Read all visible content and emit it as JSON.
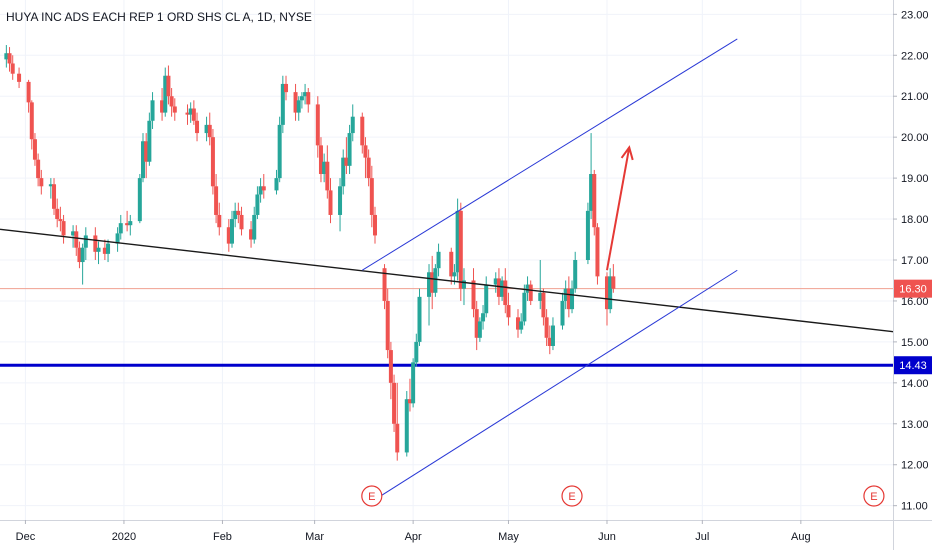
{
  "chart_data": {
    "type": "candlestick",
    "title": "HUYA INC ADS EACH REP 1 ORD SHS CL A, 1D, NYSE",
    "y_ticks": [
      "23.00",
      "22.00",
      "21.00",
      "20.00",
      "19.00",
      "18.00",
      "17.00",
      "16.00",
      "15.00",
      "14.00",
      "13.00",
      "12.00",
      "11.00"
    ],
    "y_tick_values": [
      23,
      22,
      21,
      20,
      19,
      18,
      17,
      16,
      15,
      14,
      13,
      12,
      11
    ],
    "ylim": [
      10.65,
      23.35
    ],
    "x_ticks": [
      "Dec",
      "2020",
      "Feb",
      "Mar",
      "Apr",
      "May",
      "Jun",
      "Jul",
      "Aug"
    ],
    "x_tick_dates": [
      "2019-12-01",
      "2020-01-01",
      "2020-02-01",
      "2020-03-01",
      "2020-04-01",
      "2020-05-01",
      "2020-06-01",
      "2020-07-01",
      "2020-08-01"
    ],
    "xlim": [
      "2019-11-23",
      "2020-08-30"
    ],
    "last_price": "16.30",
    "last_price_value": 16.3,
    "support_level": "14.43",
    "support_level_value": 14.43,
    "colors": {
      "up": "#26a69a",
      "down": "#ef5350",
      "channel": "#2a39d6",
      "support": "#0000cc",
      "trendline": "#1a1a1a",
      "arrow": "#e53935",
      "price_line": "#f0a090"
    },
    "candles": [
      [
        "2019-11-25",
        21.9,
        22.25,
        21.7,
        22.05
      ],
      [
        "2019-11-26",
        22.05,
        22.2,
        21.6,
        21.8
      ],
      [
        "2019-11-27",
        21.8,
        22.0,
        21.4,
        21.55
      ],
      [
        "2019-11-29",
        21.55,
        21.7,
        21.2,
        21.35
      ],
      [
        "2019-12-02",
        21.35,
        21.4,
        20.6,
        20.85
      ],
      [
        "2019-12-03",
        20.85,
        20.9,
        19.7,
        19.95
      ],
      [
        "2019-12-04",
        19.95,
        20.1,
        19.3,
        19.45
      ],
      [
        "2019-12-05",
        19.45,
        19.6,
        18.8,
        19.0
      ],
      [
        "2019-12-06",
        19.0,
        19.2,
        18.6,
        18.8
      ],
      [
        "2019-12-09",
        18.8,
        19.0,
        18.5,
        18.85
      ],
      [
        "2019-12-10",
        18.85,
        19.0,
        18.1,
        18.25
      ],
      [
        "2019-12-11",
        18.25,
        18.5,
        17.8,
        18.0
      ],
      [
        "2019-12-12",
        18.0,
        18.3,
        17.7,
        17.95
      ],
      [
        "2019-12-13",
        17.95,
        18.1,
        17.4,
        17.6
      ],
      [
        "2019-12-16",
        17.6,
        17.85,
        17.3,
        17.7
      ],
      [
        "2019-12-17",
        17.7,
        17.85,
        17.1,
        17.3
      ],
      [
        "2019-12-18",
        17.3,
        17.45,
        16.8,
        16.95
      ],
      [
        "2019-12-19",
        16.95,
        17.4,
        16.4,
        17.3
      ],
      [
        "2019-12-20",
        17.3,
        17.8,
        17.0,
        17.6
      ],
      [
        "2019-12-23",
        17.6,
        17.8,
        17.0,
        17.2
      ],
      [
        "2019-12-24",
        17.2,
        17.45,
        16.9,
        17.3
      ],
      [
        "2019-12-26",
        17.3,
        17.5,
        17.0,
        17.15
      ],
      [
        "2019-12-27",
        17.15,
        17.5,
        16.95,
        17.4
      ],
      [
        "2019-12-30",
        17.4,
        17.8,
        17.2,
        17.65
      ],
      [
        "2019-12-31",
        17.65,
        18.1,
        17.5,
        17.9
      ],
      [
        "2020-01-02",
        17.9,
        18.2,
        17.7,
        17.85
      ],
      [
        "2020-01-03",
        17.85,
        18.1,
        17.6,
        17.95
      ],
      [
        "2020-01-06",
        17.95,
        19.1,
        17.9,
        19.0
      ],
      [
        "2020-01-07",
        19.0,
        20.1,
        18.9,
        19.9
      ],
      [
        "2020-01-08",
        19.9,
        20.1,
        19.0,
        19.4
      ],
      [
        "2020-01-09",
        19.4,
        20.6,
        19.3,
        20.4
      ],
      [
        "2020-01-10",
        20.4,
        21.1,
        20.2,
        20.9
      ],
      [
        "2020-01-13",
        20.9,
        21.2,
        20.4,
        20.6
      ],
      [
        "2020-01-14",
        20.6,
        21.7,
        20.5,
        21.5
      ],
      [
        "2020-01-15",
        21.5,
        21.75,
        20.8,
        21.0
      ],
      [
        "2020-01-16",
        21.0,
        21.2,
        20.5,
        20.75
      ],
      [
        "2020-01-17",
        20.75,
        20.95,
        20.4,
        20.6
      ],
      [
        "2020-01-21",
        20.6,
        20.8,
        20.3,
        20.55
      ],
      [
        "2020-01-22",
        20.55,
        20.85,
        20.35,
        20.7
      ],
      [
        "2020-01-23",
        20.7,
        20.9,
        20.3,
        20.4
      ],
      [
        "2020-01-24",
        20.4,
        20.6,
        19.9,
        20.1
      ],
      [
        "2020-01-27",
        20.1,
        20.5,
        19.9,
        20.3
      ],
      [
        "2020-01-28",
        20.3,
        20.6,
        19.8,
        20.0
      ],
      [
        "2020-01-29",
        20.0,
        20.2,
        18.6,
        18.8
      ],
      [
        "2020-01-30",
        18.8,
        19.1,
        17.9,
        18.1
      ],
      [
        "2020-01-31",
        18.1,
        18.4,
        17.6,
        17.8
      ],
      [
        "2020-02-03",
        17.8,
        18.0,
        17.2,
        17.4
      ],
      [
        "2020-02-04",
        17.4,
        18.2,
        17.3,
        18.0
      ],
      [
        "2020-02-05",
        18.0,
        18.4,
        17.8,
        18.2
      ],
      [
        "2020-02-06",
        18.2,
        18.4,
        17.9,
        18.1
      ],
      [
        "2020-02-07",
        18.1,
        18.3,
        17.6,
        17.75
      ],
      [
        "2020-02-10",
        17.75,
        17.95,
        17.3,
        17.5
      ],
      [
        "2020-02-11",
        17.5,
        18.3,
        17.4,
        18.1
      ],
      [
        "2020-02-12",
        18.1,
        18.8,
        18.0,
        18.6
      ],
      [
        "2020-02-13",
        18.6,
        19.0,
        18.4,
        18.8
      ],
      [
        "2020-02-14",
        18.8,
        19.1,
        18.5,
        18.7
      ],
      [
        "2020-02-18",
        18.7,
        19.2,
        18.6,
        19.0
      ],
      [
        "2020-02-19",
        19.0,
        20.5,
        18.9,
        20.3
      ],
      [
        "2020-02-20",
        20.3,
        21.5,
        20.1,
        21.3
      ],
      [
        "2020-02-21",
        21.3,
        21.5,
        20.9,
        21.1
      ],
      [
        "2020-02-24",
        21.1,
        21.3,
        20.4,
        20.6
      ],
      [
        "2020-02-25",
        20.6,
        21.0,
        20.4,
        20.9
      ],
      [
        "2020-02-26",
        20.9,
        21.1,
        20.7,
        21.0
      ],
      [
        "2020-02-27",
        21.0,
        21.3,
        20.8,
        21.1
      ],
      [
        "2020-02-28",
        21.1,
        21.2,
        20.6,
        20.8
      ],
      [
        "2020-03-02",
        20.8,
        21.0,
        19.5,
        19.8
      ],
      [
        "2020-03-03",
        19.8,
        20.0,
        18.9,
        19.1
      ],
      [
        "2020-03-04",
        19.1,
        19.6,
        18.9,
        19.4
      ],
      [
        "2020-03-05",
        19.4,
        19.8,
        18.5,
        18.7
      ],
      [
        "2020-03-06",
        18.7,
        19.0,
        17.9,
        18.1
      ],
      [
        "2020-03-09",
        18.1,
        19.0,
        17.7,
        18.8
      ],
      [
        "2020-03-10",
        18.8,
        19.7,
        18.6,
        19.5
      ],
      [
        "2020-03-11",
        19.5,
        20.0,
        19.1,
        19.3
      ],
      [
        "2020-03-12",
        19.3,
        20.3,
        19.1,
        20.1
      ],
      [
        "2020-03-13",
        20.1,
        20.8,
        19.9,
        20.5
      ],
      [
        "2020-03-16",
        20.5,
        20.6,
        19.6,
        19.8
      ],
      [
        "2020-03-17",
        19.8,
        20.0,
        19.0,
        19.5
      ],
      [
        "2020-03-18",
        19.5,
        19.7,
        18.8,
        19.0
      ],
      [
        "2020-03-19",
        19.0,
        19.3,
        17.8,
        18.1
      ],
      [
        "2020-03-20",
        18.1,
        18.3,
        17.4,
        17.6
      ],
      [
        "2020-03-23",
        16.8,
        16.9,
        15.8,
        16.0
      ],
      [
        "2020-03-24",
        16.0,
        16.3,
        14.6,
        14.8
      ],
      [
        "2020-03-25",
        14.8,
        15.0,
        13.6,
        14.0
      ],
      [
        "2020-03-26",
        14.0,
        14.2,
        12.8,
        13.0
      ],
      [
        "2020-03-27",
        13.0,
        14.0,
        12.1,
        12.3
      ],
      [
        "2020-03-30",
        12.3,
        13.8,
        12.2,
        13.6
      ],
      [
        "2020-03-31",
        13.6,
        14.1,
        13.3,
        13.5
      ],
      [
        "2020-04-01",
        13.5,
        14.6,
        13.4,
        14.5
      ],
      [
        "2020-04-02",
        14.5,
        15.2,
        14.4,
        15.0
      ],
      [
        "2020-04-03",
        15.0,
        16.3,
        14.9,
        16.1
      ],
      [
        "2020-04-06",
        16.1,
        16.9,
        15.4,
        16.7
      ],
      [
        "2020-04-07",
        16.7,
        17.1,
        15.8,
        16.2
      ],
      [
        "2020-04-08",
        16.2,
        16.9,
        16.1,
        16.8
      ],
      [
        "2020-04-09",
        16.8,
        17.4,
        16.6,
        17.2
      ],
      [
        "2020-04-13",
        17.2,
        17.3,
        16.4,
        16.6
      ],
      [
        "2020-04-14",
        16.6,
        16.9,
        16.4,
        16.7
      ],
      [
        "2020-04-15",
        16.7,
        18.5,
        16.5,
        18.2
      ],
      [
        "2020-04-16",
        18.2,
        18.4,
        16.0,
        16.3
      ],
      [
        "2020-04-17",
        16.3,
        16.8,
        15.9,
        16.5
      ],
      [
        "2020-04-20",
        16.5,
        16.8,
        15.6,
        15.8
      ],
      [
        "2020-04-21",
        15.8,
        16.0,
        14.8,
        15.1
      ],
      [
        "2020-04-22",
        15.1,
        15.6,
        15.0,
        15.5
      ],
      [
        "2020-04-23",
        15.5,
        15.9,
        15.3,
        15.7
      ],
      [
        "2020-04-24",
        15.7,
        16.6,
        15.6,
        16.4
      ],
      [
        "2020-04-27",
        16.4,
        16.7,
        16.2,
        16.55
      ],
      [
        "2020-04-28",
        16.55,
        16.8,
        15.9,
        16.1
      ],
      [
        "2020-04-29",
        16.1,
        16.6,
        16.0,
        16.5
      ],
      [
        "2020-04-30",
        16.5,
        16.8,
        15.7,
        15.9
      ],
      [
        "2020-05-01",
        15.9,
        16.2,
        15.4,
        15.6
      ],
      [
        "2020-05-04",
        15.6,
        15.8,
        15.1,
        15.3
      ],
      [
        "2020-05-05",
        15.3,
        15.7,
        15.2,
        15.5
      ],
      [
        "2020-05-06",
        15.5,
        16.4,
        15.4,
        16.2
      ],
      [
        "2020-05-07",
        16.2,
        16.6,
        16.0,
        16.4
      ],
      [
        "2020-05-08",
        16.4,
        16.5,
        15.9,
        16.0
      ],
      [
        "2020-05-11",
        16.0,
        17.0,
        15.8,
        16.2
      ],
      [
        "2020-05-12",
        16.2,
        16.3,
        15.4,
        15.6
      ],
      [
        "2020-05-13",
        15.6,
        15.8,
        14.9,
        15.1
      ],
      [
        "2020-05-14",
        15.1,
        15.4,
        14.7,
        14.9
      ],
      [
        "2020-05-15",
        14.9,
        15.6,
        14.8,
        15.4
      ],
      [
        "2020-05-18",
        15.4,
        16.2,
        15.3,
        16.0
      ],
      [
        "2020-05-19",
        16.0,
        16.5,
        15.8,
        16.3
      ],
      [
        "2020-05-20",
        16.3,
        16.6,
        15.6,
        15.8
      ],
      [
        "2020-05-21",
        15.8,
        16.5,
        15.7,
        16.3
      ],
      [
        "2020-05-22",
        16.3,
        17.2,
        16.2,
        17.0
      ],
      [
        "2020-05-26",
        17.0,
        18.4,
        16.9,
        18.2
      ],
      [
        "2020-05-27",
        18.2,
        20.1,
        18.0,
        19.1
      ],
      [
        "2020-05-28",
        19.1,
        19.2,
        17.6,
        17.8
      ],
      [
        "2020-05-29",
        17.8,
        17.9,
        16.4,
        16.6
      ],
      [
        "2020-06-01",
        16.6,
        16.7,
        15.4,
        15.8
      ],
      [
        "2020-06-02",
        15.8,
        16.8,
        15.7,
        16.6
      ],
      [
        "2020-06-03",
        16.6,
        16.9,
        16.2,
        16.3
      ]
    ],
    "trendline": {
      "start": [
        "2019-11-23",
        17.75
      ],
      "end": [
        "2020-08-30",
        15.25
      ]
    },
    "channel_upper": {
      "start": [
        "2020-03-16",
        16.75
      ],
      "end": [
        "2020-07-12",
        22.4
      ]
    },
    "channel_lower": {
      "start": [
        "2020-03-19",
        11.1
      ],
      "end": [
        "2020-07-12",
        16.75
      ]
    },
    "projection_arrow": {
      "start": [
        "2020-06-01",
        16.75
      ],
      "end": [
        "2020-06-08",
        19.75
      ]
    },
    "events": [
      {
        "label": "E",
        "date": "2020-03-19"
      },
      {
        "label": "E",
        "date": "2020-05-21"
      },
      {
        "label": "E",
        "date": "2020-08-24"
      }
    ]
  }
}
